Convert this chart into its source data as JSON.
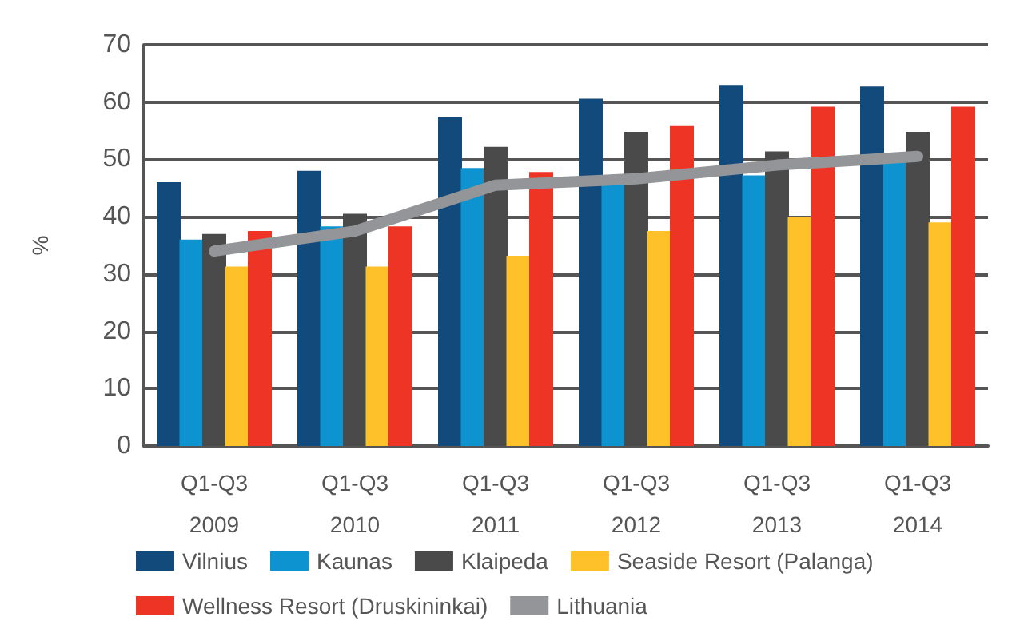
{
  "chart_data": {
    "type": "bar",
    "ylabel": "%",
    "categories": [
      "Q1-Q3\n2009",
      "Q1-Q3\n2010",
      "Q1-Q3\n2011",
      "Q1-Q3\n2012",
      "Q1-Q3\n2013",
      "Q1-Q3\n2014"
    ],
    "series": [
      {
        "name": "Vilnius",
        "color": "#134a7c",
        "values": [
          46,
          48,
          57.3,
          60.6,
          63,
          62.7
        ]
      },
      {
        "name": "Kaunas",
        "color": "#0d93d0",
        "values": [
          36,
          38.3,
          48.5,
          46.2,
          47.2,
          50
        ]
      },
      {
        "name": "Klaipeda",
        "color": "#4a4a4a",
        "values": [
          37,
          40.5,
          52.2,
          54.8,
          51.4,
          54.8
        ]
      },
      {
        "name": "Seaside Resort (Palanga)",
        "color": "#fec12a",
        "values": [
          31.3,
          31.3,
          33.2,
          37.5,
          40,
          39
        ]
      },
      {
        "name": "Wellness Resort (Druskininkai)",
        "color": "#ee3424",
        "values": [
          37.5,
          38.3,
          47.8,
          55.8,
          59.2,
          59.2
        ]
      },
      {
        "name": "Lithuania",
        "color": "#939598",
        "type": "line",
        "values": [
          34,
          37.5,
          45.5,
          46.6,
          49,
          50.5
        ]
      }
    ],
    "ylim": [
      0,
      70
    ],
    "yticks": [
      0,
      10,
      20,
      30,
      40,
      50,
      60,
      70
    ],
    "grid": "y",
    "legend": "bottom",
    "line_style": "solid"
  }
}
